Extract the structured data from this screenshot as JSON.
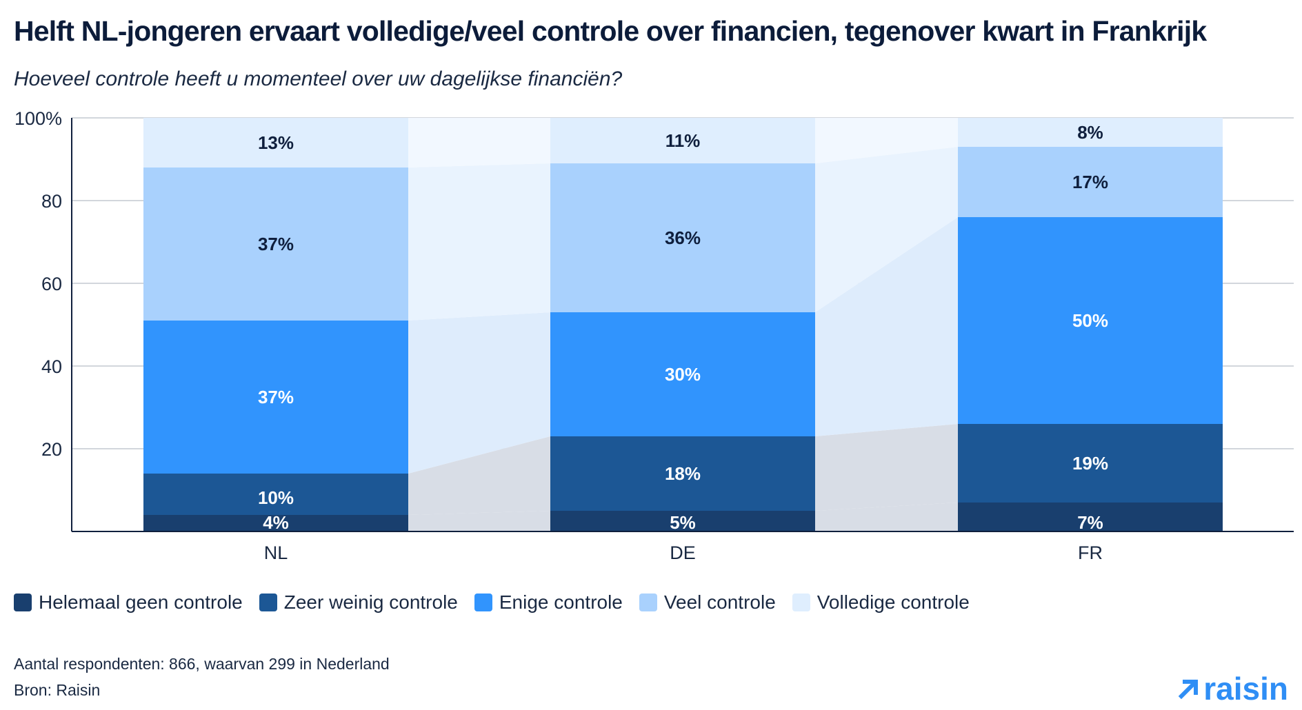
{
  "title": "Helft NL-jongeren ervaart volledige/veel controle over financien, tegenover kwart in Frankrijk",
  "subtitle": "Hoeveel controle heeft u momenteel over uw dagelijkse financiën?",
  "chart_data": {
    "type": "bar",
    "stacked": true,
    "categories": [
      "NL",
      "DE",
      "FR"
    ],
    "series": [
      {
        "name": "Helemaal geen controle",
        "values": [
          4,
          5,
          7
        ],
        "labels": [
          "4%",
          "5%",
          "7%"
        ],
        "color": "#193f6e"
      },
      {
        "name": "Zeer weinig controle",
        "values": [
          10,
          18,
          19
        ],
        "labels": [
          "10%",
          "18%",
          "19%"
        ],
        "color": "#1c5795"
      },
      {
        "name": "Enige controle",
        "values": [
          37,
          30,
          50
        ],
        "labels": [
          "37%",
          "30%",
          "50%"
        ],
        "color": "#3194fd"
      },
      {
        "name": "Veel controle",
        "values": [
          37,
          36,
          17
        ],
        "labels": [
          "37%",
          "36%",
          "17%"
        ],
        "color": "#a9d1fd"
      },
      {
        "name": "Volledige controle",
        "values": [
          13,
          11,
          8
        ],
        "labels": [
          "13%",
          "11%",
          "8%"
        ],
        "color": "#dfeefe"
      }
    ],
    "ylim": [
      0,
      100
    ],
    "yticks": [
      20,
      40,
      60,
      80,
      100
    ],
    "ytick_labels": [
      "20",
      "40",
      "60",
      "80",
      "100%"
    ],
    "grid": true,
    "legend": "bottom"
  },
  "footer": {
    "respondents": "Aantal respondenten: 866, waarvan 299 in Nederland",
    "source": "Bron: Raisin"
  },
  "logo": {
    "text": "raisin",
    "icon": "arrow-up-right-icon",
    "color": "#2f8ef5"
  }
}
